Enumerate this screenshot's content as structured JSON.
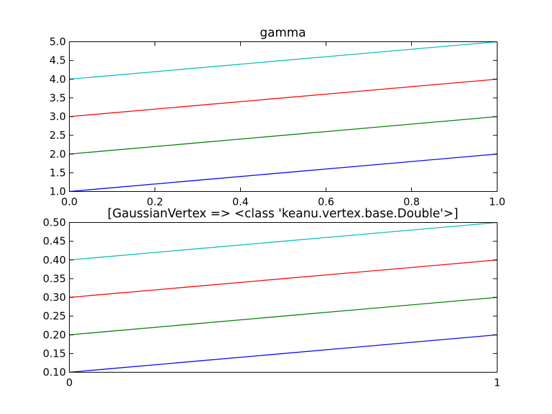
{
  "chart_data": [
    {
      "type": "line",
      "title": "gamma",
      "xlabel": "",
      "ylabel": "",
      "xlim": [
        0.0,
        1.0
      ],
      "ylim": [
        1.0,
        5.0
      ],
      "xticks": [
        "0.0",
        "0.2",
        "0.4",
        "0.6",
        "0.8",
        "1.0"
      ],
      "xtick_values": [
        0.0,
        0.2,
        0.4,
        0.6,
        0.8,
        1.0
      ],
      "yticks": [
        "1.0",
        "1.5",
        "2.0",
        "2.5",
        "3.0",
        "3.5",
        "4.0",
        "4.5",
        "5.0"
      ],
      "ytick_values": [
        1.0,
        1.5,
        2.0,
        2.5,
        3.0,
        3.5,
        4.0,
        4.5,
        5.0
      ],
      "grid": false,
      "x": [
        0.0,
        1.0
      ],
      "series": [
        {
          "values": [
            1.0,
            2.0
          ],
          "color": "#0000ff"
        },
        {
          "values": [
            2.0,
            3.0
          ],
          "color": "#008000"
        },
        {
          "values": [
            3.0,
            4.0
          ],
          "color": "#ff0000"
        },
        {
          "values": [
            4.0,
            5.0
          ],
          "color": "#00bfbf"
        }
      ]
    },
    {
      "type": "line",
      "title": "[GaussianVertex => <class 'keanu.vertex.base.Double'>]",
      "xlabel": "",
      "ylabel": "",
      "xlim": [
        0,
        1
      ],
      "ylim": [
        0.1,
        0.5
      ],
      "xticks": [
        "0",
        "1"
      ],
      "xtick_values": [
        0,
        1
      ],
      "yticks": [
        "0.10",
        "0.15",
        "0.20",
        "0.25",
        "0.30",
        "0.35",
        "0.40",
        "0.45",
        "0.50"
      ],
      "ytick_values": [
        0.1,
        0.15,
        0.2,
        0.25,
        0.3,
        0.35,
        0.4,
        0.45,
        0.5
      ],
      "grid": false,
      "x": [
        0,
        1
      ],
      "series": [
        {
          "values": [
            0.1,
            0.2
          ],
          "color": "#0000ff"
        },
        {
          "values": [
            0.2,
            0.3
          ],
          "color": "#008000"
        },
        {
          "values": [
            0.3,
            0.4
          ],
          "color": "#ff0000"
        },
        {
          "values": [
            0.4,
            0.5
          ],
          "color": "#00bfbf"
        }
      ]
    }
  ]
}
